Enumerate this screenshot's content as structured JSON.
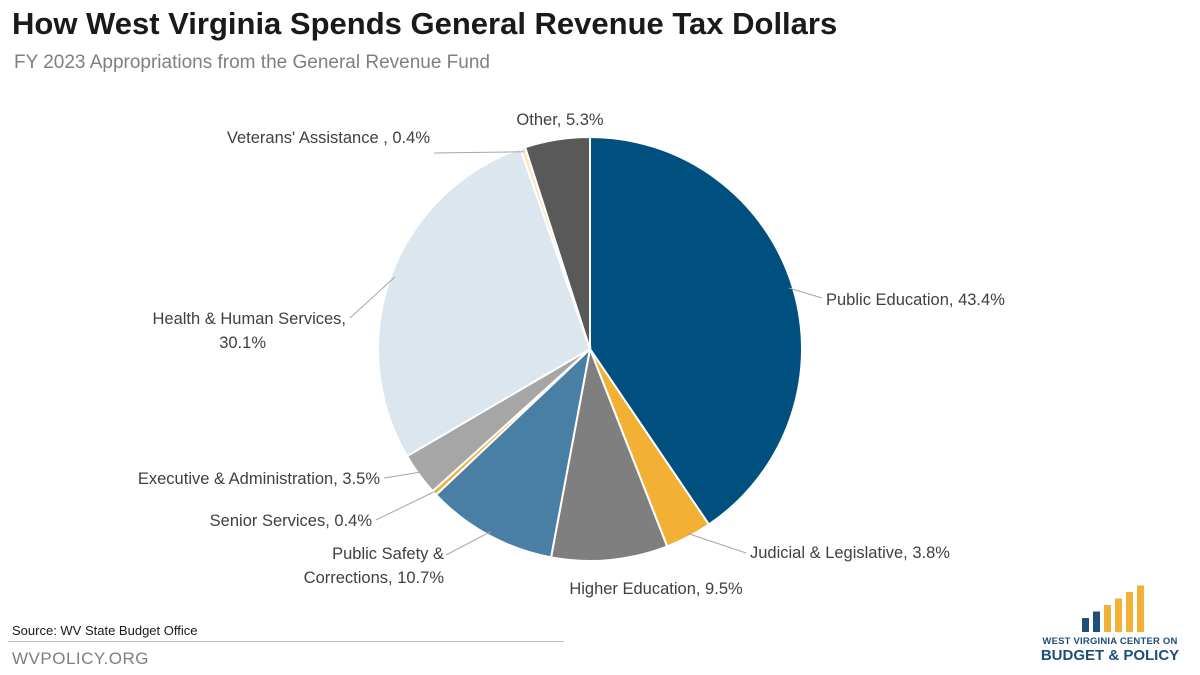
{
  "title": "How West Virginia Spends General Revenue Tax Dollars",
  "subtitle": "FY 2023 Appropriations from the General Revenue Fund",
  "footer": {
    "source": "Source: WV State Budget Office",
    "site": "WVPOLICY.ORG"
  },
  "logo": {
    "line1": "WEST VIRGINIA CENTER ON",
    "line2": "BUDGET & POLICY",
    "bar_colors": [
      "#1f4e79",
      "#1f4e79",
      "#f2b134",
      "#f2b134",
      "#f2b134",
      "#f2b134"
    ]
  },
  "chart_data": {
    "type": "pie",
    "title": "How West Virginia Spends General Revenue Tax Dollars",
    "subtitle": "FY 2023 Appropriations from the General Revenue Fund",
    "start": "12 o'clock",
    "direction": "clockwise",
    "slices": [
      {
        "label": "Public Education, 43.4%",
        "value": 43.4,
        "color": "#00507f"
      },
      {
        "label": "Judicial & Legislative, 3.8%",
        "value": 3.8,
        "color": "#f2b134"
      },
      {
        "label": "Higher Education, 9.5%",
        "value": 9.5,
        "color": "#7f7f7f"
      },
      {
        "label": "Public Safety & Corrections, 10.7%",
        "label_lines": [
          "Public Safety &",
          "Corrections, 10.7%"
        ],
        "value": 10.7,
        "color": "#4a7fa5"
      },
      {
        "label": "Senior Services, 0.4%",
        "value": 0.4,
        "color": "#f2b134"
      },
      {
        "label": "Executive & Administration, 3.5%",
        "value": 3.5,
        "color": "#a6a6a6"
      },
      {
        "label": "Health & Human Services, 30.1%",
        "label_lines": [
          "Health & Human Services,",
          "30.1%"
        ],
        "value": 30.1,
        "color": "#dce6ef"
      },
      {
        "label": "Veterans' Assistance , 0.4%",
        "value": 0.4,
        "color": "#fbe5c8"
      },
      {
        "label": "Other, 5.3%",
        "value": 5.3,
        "color": "#595959"
      }
    ]
  }
}
